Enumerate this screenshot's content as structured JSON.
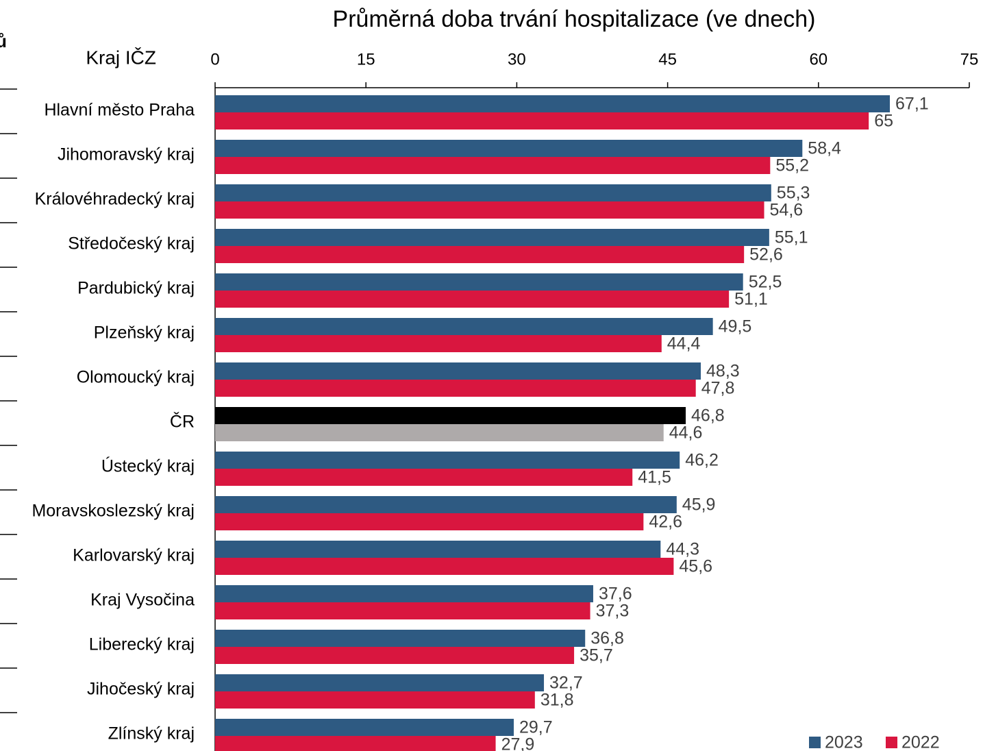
{
  "chart_data": {
    "type": "bar",
    "orientation": "horizontal",
    "title": "Průměrná doba trvání hospitalizace (ve dnech)",
    "ylabel": "Kraj IČZ",
    "fragment": "ů",
    "categories": [
      "Hlavní město Praha",
      "Jihomoravský kraj",
      "Královéhradecký kraj",
      "Středočeský kraj",
      "Pardubický kraj",
      "Plzeňský kraj",
      "Olomoucký kraj",
      "ČR",
      "Ústecký kraj",
      "Moravskoslezský kraj",
      "Karlovarský kraj",
      "Kraj Vysočina",
      "Liberecký kraj",
      "Jihočeský kraj",
      "Zlínský kraj"
    ],
    "highlight": "ČR",
    "series": [
      {
        "name": "2023",
        "color": "#2e5a82",
        "highlight_color": "#000000",
        "values": [
          67.1,
          58.4,
          55.3,
          55.1,
          52.5,
          49.5,
          48.3,
          46.8,
          46.2,
          45.9,
          44.3,
          37.6,
          36.8,
          32.7,
          29.7
        ],
        "value_labels": [
          "67,1",
          "58,4",
          "55,3",
          "55,1",
          "52,5",
          "49,5",
          "48,3",
          "46,8",
          "46,2",
          "45,9",
          "44,3",
          "37,6",
          "36,8",
          "32,7",
          "29,7"
        ]
      },
      {
        "name": "2022",
        "color": "#d9163f",
        "highlight_color": "#aeaaaa",
        "values": [
          65,
          55.2,
          54.6,
          52.6,
          51.1,
          44.4,
          47.8,
          44.6,
          41.5,
          42.6,
          45.6,
          37.3,
          35.7,
          31.8,
          27.9
        ],
        "value_labels": [
          "65",
          "55,2",
          "54,6",
          "52,6",
          "51,1",
          "44,4",
          "47,8",
          "44,6",
          "41,5",
          "42,6",
          "45,6",
          "37,3",
          "35,7",
          "31,8",
          "27,9"
        ]
      }
    ],
    "xlim": [
      0,
      75
    ],
    "xticks": [
      0,
      15,
      30,
      45,
      60,
      75
    ],
    "grid": false,
    "legend": "lower right"
  }
}
